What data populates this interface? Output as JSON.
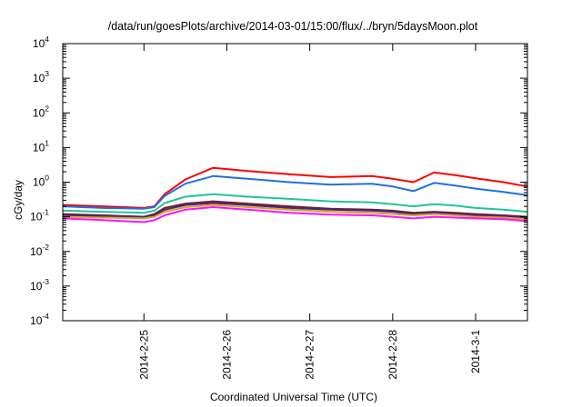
{
  "chart_data": {
    "type": "line",
    "title": "/data/run/goesPlots/archive/2014-03-01/15:00/flux/../bryn/5daysMoon.plot",
    "xlabel": "Coordinated Universal Time (UTC)",
    "ylabel": "cGy/day",
    "yscale": "log",
    "ylim": [
      0.0001,
      10000
    ],
    "xlim": [
      "2014-02-24 00:30",
      "2014-03-01 15:00"
    ],
    "grid": false,
    "legend": "none",
    "y_ticks": [
      {
        "base": "10",
        "exp": "-4",
        "value": 0.0001
      },
      {
        "base": "10",
        "exp": "-3",
        "value": 0.001
      },
      {
        "base": "10",
        "exp": "-2",
        "value": 0.01
      },
      {
        "base": "10",
        "exp": "-1",
        "value": 0.1
      },
      {
        "base": "10",
        "exp": "0",
        "value": 1
      },
      {
        "base": "10",
        "exp": "1",
        "value": 10
      },
      {
        "base": "10",
        "exp": "2",
        "value": 100
      },
      {
        "base": "10",
        "exp": "3",
        "value": 1000
      },
      {
        "base": "10",
        "exp": "4",
        "value": 10000
      }
    ],
    "x_ticks": [
      {
        "label": "2014-2-25",
        "value": "2014-02-25 00:00"
      },
      {
        "label": "2014-2-26",
        "value": "2014-02-26 00:00"
      },
      {
        "label": "2014-2-27",
        "value": "2014-02-27 00:00"
      },
      {
        "label": "2014-2-28",
        "value": "2014-02-28 00:00"
      },
      {
        "label": "2014-3-1",
        "value": "2014-03-01 00:00"
      }
    ],
    "x": [
      "2014-02-24 00:30",
      "2014-02-24 12:00",
      "2014-02-25 00:00",
      "2014-02-25 03:00",
      "2014-02-25 06:00",
      "2014-02-25 12:00",
      "2014-02-25 20:00",
      "2014-02-26 06:00",
      "2014-02-26 18:00",
      "2014-02-27 06:00",
      "2014-02-27 18:00",
      "2014-02-28 00:00",
      "2014-02-28 06:00",
      "2014-02-28 12:00",
      "2014-02-28 18:00",
      "2014-03-01 00:00",
      "2014-03-01 08:00",
      "2014-03-01 15:00"
    ],
    "series": [
      {
        "color": "#ff0000",
        "values": [
          0.22,
          0.2,
          0.18,
          0.2,
          0.45,
          1.2,
          2.6,
          2.1,
          1.7,
          1.4,
          1.5,
          1.25,
          1.0,
          1.9,
          1.6,
          1.3,
          1.0,
          0.75
        ]
      },
      {
        "color": "#1f6fe5",
        "values": [
          0.2,
          0.18,
          0.17,
          0.19,
          0.4,
          0.9,
          1.5,
          1.25,
          1.0,
          0.85,
          0.9,
          0.75,
          0.55,
          0.95,
          0.8,
          0.65,
          0.52,
          0.42
        ]
      },
      {
        "color": "#20c49a",
        "values": [
          0.15,
          0.14,
          0.13,
          0.15,
          0.25,
          0.38,
          0.45,
          0.38,
          0.33,
          0.28,
          0.26,
          0.23,
          0.2,
          0.23,
          0.21,
          0.18,
          0.16,
          0.14
        ]
      },
      {
        "color": "#7a1f1f",
        "values": [
          0.12,
          0.11,
          0.1,
          0.12,
          0.18,
          0.24,
          0.28,
          0.24,
          0.2,
          0.17,
          0.16,
          0.15,
          0.13,
          0.14,
          0.13,
          0.12,
          0.11,
          0.1
        ]
      },
      {
        "color": "#3b2a8a",
        "values": [
          0.11,
          0.105,
          0.1,
          0.11,
          0.16,
          0.22,
          0.25,
          0.22,
          0.18,
          0.16,
          0.15,
          0.14,
          0.12,
          0.13,
          0.12,
          0.11,
          0.105,
          0.095
        ]
      },
      {
        "color": "#e0a020",
        "values": [
          0.1,
          0.095,
          0.09,
          0.1,
          0.14,
          0.19,
          0.22,
          0.19,
          0.16,
          0.14,
          0.13,
          0.12,
          0.11,
          0.12,
          0.11,
          0.1,
          0.095,
          0.085
        ]
      },
      {
        "color": "#ff10ff",
        "values": [
          0.09,
          0.08,
          0.07,
          0.08,
          0.11,
          0.16,
          0.19,
          0.16,
          0.13,
          0.115,
          0.11,
          0.1,
          0.09,
          0.1,
          0.095,
          0.09,
          0.085,
          0.075
        ]
      }
    ]
  }
}
